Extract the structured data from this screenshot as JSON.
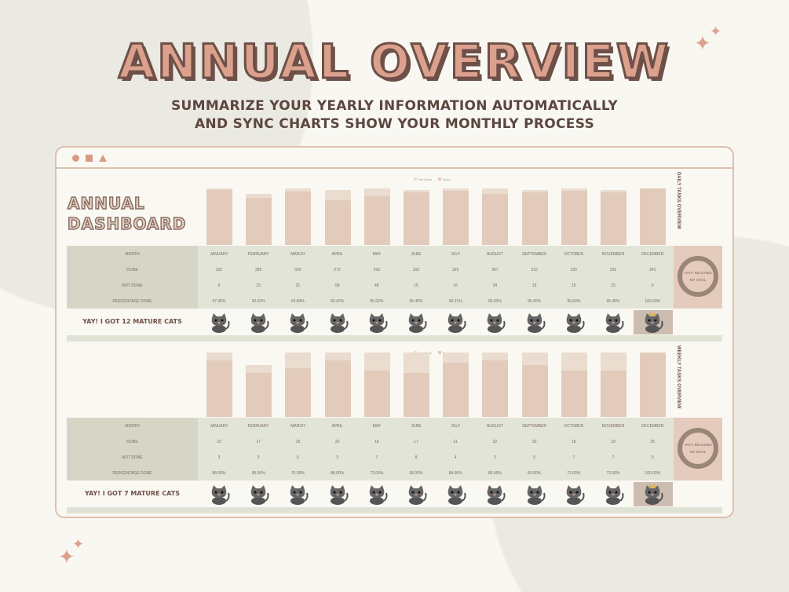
{
  "header": {
    "title": "ANNUAL OVERVIEW",
    "subtitle_line1": "SUMMARIZE YOUR YEARLY INFORMATION AUTOMATICALLY",
    "subtitle_line2": "AND SYNC CHARTS SHOW YOUR MONTHLY PROCESS"
  },
  "logo": "ANNUAL DASHBOARD",
  "months": [
    "JANUARY",
    "FEBRUARY",
    "MARCH",
    "APRIL",
    "MAY",
    "JUNE",
    "JULY",
    "AUGUST",
    "SEPTEMBER",
    "OCTOBER",
    "NOVEMBER",
    "DECEMBER"
  ],
  "row_labels": {
    "month": "MONTH",
    "done": "DONE",
    "not_done": "NOT DONE",
    "pct": "PERCENTAGE DONE"
  },
  "legend": {
    "not_done": "Not Done",
    "done": "Done"
  },
  "goal_text": "YAY! I REACHED MY GOAL",
  "colors": {
    "accent": "#dba18d",
    "done": "#e2cbbb",
    "not_done": "#eadccf",
    "outline": "#6e5048"
  },
  "daily": {
    "section_title": "DAILY TASKS OVERVIEW",
    "cats_label": "YAY! I GOT 12 MATURE CATS",
    "goal_progress": 0.97,
    "done": [
      332,
      285,
      320,
      272,
      293,
      315,
      325,
      307,
      315,
      326,
      315,
      341
    ],
    "not_done": [
      9,
      23,
      21,
      58,
      48,
      15,
      16,
      34,
      15,
      15,
      15,
      0
    ],
    "pct": [
      "97.36%",
      "92.53%",
      "93.84%",
      "82.42%",
      "85.92%",
      "95.45%",
      "95.31%",
      "90.03%",
      "95.45%",
      "95.60%",
      "95.45%",
      "100.00%"
    ]
  },
  "weekly": {
    "section_title": "WEEKLY TASKS OVERVIEW",
    "cats_label": "YAY! I GOT 7 MATURE CATS",
    "goal_progress": 1.0,
    "done": [
      22,
      17,
      19,
      22,
      18,
      17,
      21,
      22,
      20,
      18,
      18,
      25
    ],
    "not_done": [
      3,
      3,
      6,
      3,
      7,
      8,
      4,
      3,
      5,
      7,
      7,
      0
    ],
    "pct": [
      "88.00%",
      "85.00%",
      "76.00%",
      "88.00%",
      "72.00%",
      "68.00%",
      "84.00%",
      "88.00%",
      "80.00%",
      "72.00%",
      "72.00%",
      "100.00%"
    ]
  }
}
